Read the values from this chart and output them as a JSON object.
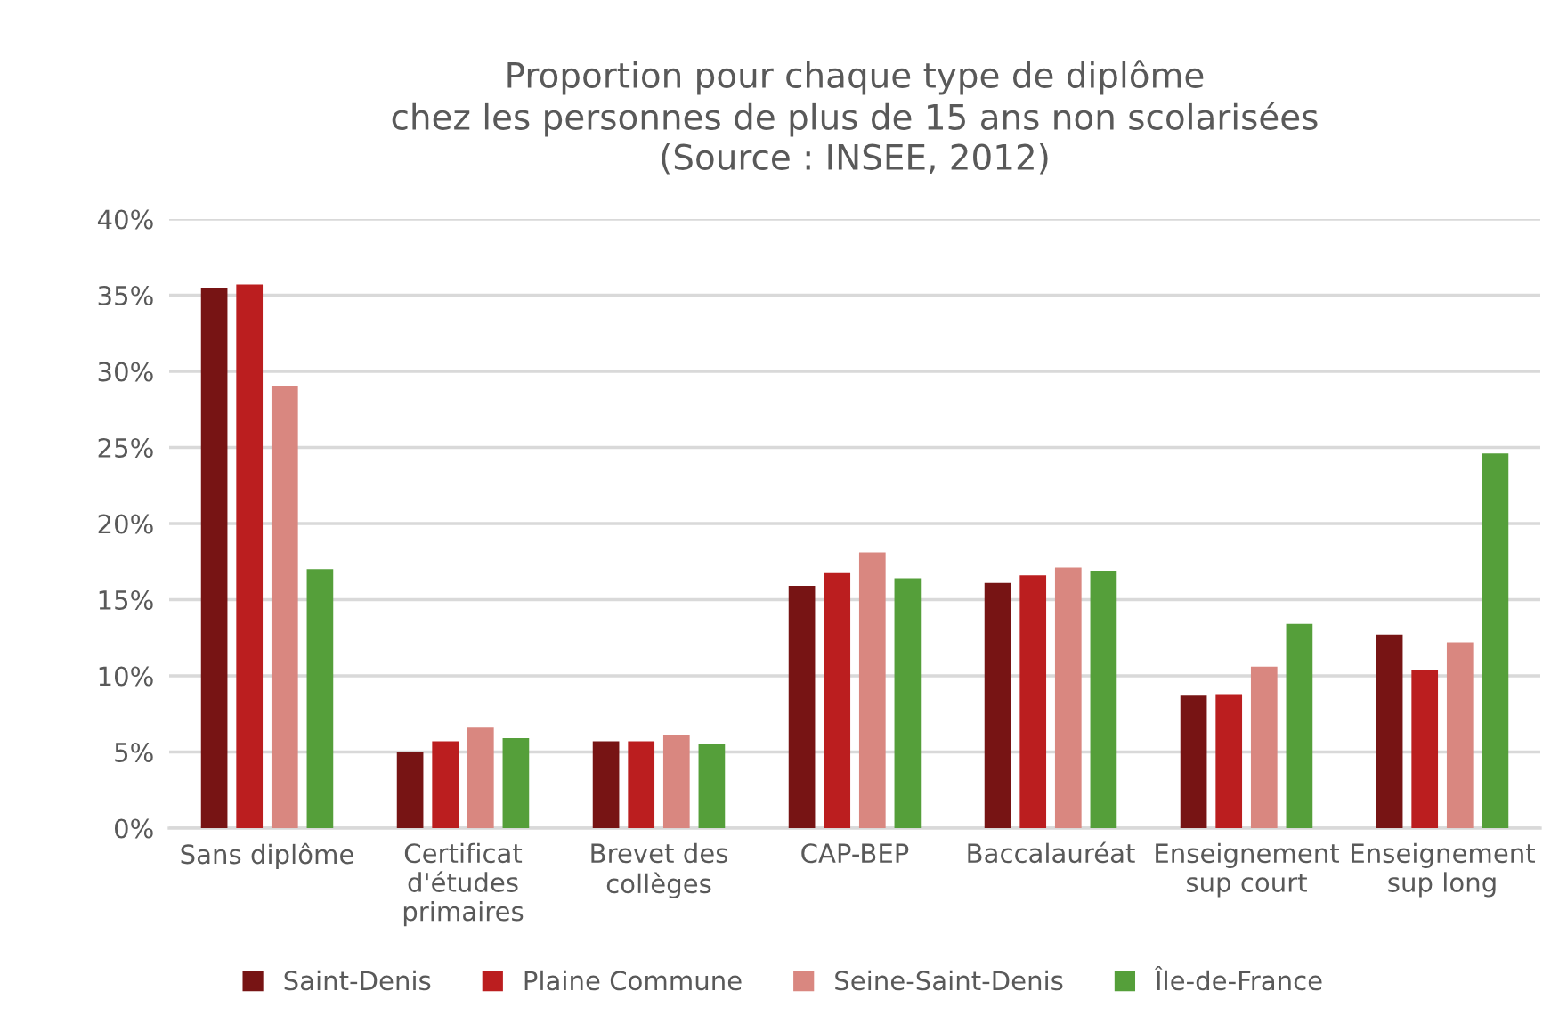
{
  "chart_data": {
    "type": "bar",
    "title": "Proportion pour chaque type de diplôme\nchez les personnes de plus de 15 ans non scolarisées\n(Source : INSEE, 2012)",
    "categories": [
      "Sans diplôme",
      "Certificat\nd'études\nprimaires",
      "Brevet des\ncollèges",
      "CAP-BEP",
      "Baccalauréat",
      "Enseignement\nsup court",
      "Enseignement\nsup long"
    ],
    "series": [
      {
        "name": "Saint-Denis",
        "color": "#771414",
        "values": [
          35.5,
          5.0,
          5.7,
          15.9,
          16.1,
          8.7,
          12.7
        ]
      },
      {
        "name": "Plaine Commune",
        "color": "#bb1e1f",
        "values": [
          35.7,
          5.7,
          5.7,
          16.8,
          16.6,
          8.8,
          10.4
        ]
      },
      {
        "name": "Seine-Saint-Denis",
        "color": "#d98780",
        "values": [
          29.0,
          6.6,
          6.1,
          18.1,
          17.1,
          10.6,
          12.2
        ]
      },
      {
        "name": "Île-de-France",
        "color": "#559f3a",
        "values": [
          17.0,
          5.9,
          5.5,
          16.4,
          16.9,
          13.4,
          24.6
        ]
      }
    ],
    "ylim": [
      0,
      40
    ],
    "yticks": [
      {
        "value": 0,
        "label": "0%"
      },
      {
        "value": 5,
        "label": "5%"
      },
      {
        "value": 10,
        "label": "10%"
      },
      {
        "value": 15,
        "label": "15%"
      },
      {
        "value": 20,
        "label": "20%"
      },
      {
        "value": 25,
        "label": "25%"
      },
      {
        "value": 30,
        "label": "30%"
      },
      {
        "value": 35,
        "label": "35%"
      },
      {
        "value": 40,
        "label": "40%"
      }
    ],
    "grid": "y",
    "legend": "bottom"
  }
}
